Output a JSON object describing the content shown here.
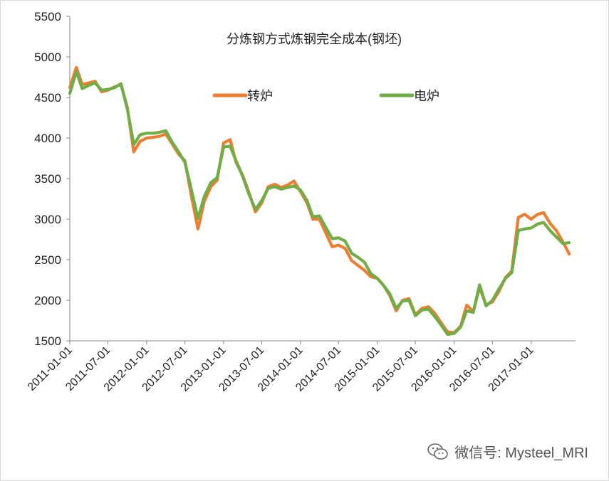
{
  "chart_data": {
    "type": "line",
    "title": "分炼钢方式炼钢完全成本(钢坯)",
    "xlabel": "",
    "ylabel": "",
    "ylim": [
      1500,
      5500
    ],
    "yticks": [
      1500,
      2000,
      2500,
      3000,
      3500,
      4000,
      4500,
      5000,
      5500
    ],
    "xlim": [
      "2011-01-01",
      "2017-07-31"
    ],
    "xticks": [
      "2011-01-01",
      "2011-07-01",
      "2012-01-01",
      "2012-07-01",
      "2013-01-01",
      "2013-07-01",
      "2014-01-01",
      "2014-07-01",
      "2015-01-01",
      "2015-07-01",
      "2016-01-01",
      "2016-07-01",
      "2017-01-01"
    ],
    "legend_position": "top",
    "grid": false,
    "series": [
      {
        "name": "转炉",
        "color": "#ED7D31",
        "points": [
          [
            "2011-01-01",
            4620
          ],
          [
            "2011-02-01",
            4870
          ],
          [
            "2011-03-01",
            4660
          ],
          [
            "2011-04-01",
            4680
          ],
          [
            "2011-05-01",
            4700
          ],
          [
            "2011-06-01",
            4570
          ],
          [
            "2011-07-01",
            4590
          ],
          [
            "2011-08-01",
            4630
          ],
          [
            "2011-09-01",
            4660
          ],
          [
            "2011-10-01",
            4380
          ],
          [
            "2011-11-01",
            3830
          ],
          [
            "2011-12-01",
            3960
          ],
          [
            "2012-01-01",
            4000
          ],
          [
            "2012-02-01",
            4010
          ],
          [
            "2012-03-01",
            4020
          ],
          [
            "2012-04-01",
            4050
          ],
          [
            "2012-05-01",
            3930
          ],
          [
            "2012-06-01",
            3800
          ],
          [
            "2012-07-01",
            3720
          ],
          [
            "2012-08-01",
            3280
          ],
          [
            "2012-09-01",
            2880
          ],
          [
            "2012-10-01",
            3220
          ],
          [
            "2012-11-01",
            3400
          ],
          [
            "2012-12-01",
            3480
          ],
          [
            "2013-01-01",
            3940
          ],
          [
            "2013-02-01",
            3980
          ],
          [
            "2013-03-01",
            3700
          ],
          [
            "2013-04-01",
            3540
          ],
          [
            "2013-05-01",
            3330
          ],
          [
            "2013-06-01",
            3090
          ],
          [
            "2013-07-01",
            3200
          ],
          [
            "2013-08-01",
            3400
          ],
          [
            "2013-09-01",
            3430
          ],
          [
            "2013-10-01",
            3390
          ],
          [
            "2013-11-01",
            3420
          ],
          [
            "2013-12-01",
            3470
          ],
          [
            "2014-01-01",
            3340
          ],
          [
            "2014-02-01",
            3200
          ],
          [
            "2014-03-01",
            3000
          ],
          [
            "2014-04-01",
            3000
          ],
          [
            "2014-05-01",
            2830
          ],
          [
            "2014-06-01",
            2660
          ],
          [
            "2014-07-01",
            2680
          ],
          [
            "2014-08-01",
            2640
          ],
          [
            "2014-09-01",
            2490
          ],
          [
            "2014-10-01",
            2430
          ],
          [
            "2014-11-01",
            2370
          ],
          [
            "2014-12-01",
            2290
          ],
          [
            "2015-01-01",
            2270
          ],
          [
            "2015-02-01",
            2180
          ],
          [
            "2015-03-01",
            2060
          ],
          [
            "2015-04-01",
            1870
          ],
          [
            "2015-05-01",
            2000
          ],
          [
            "2015-06-01",
            2020
          ],
          [
            "2015-07-01",
            1820
          ],
          [
            "2015-08-01",
            1900
          ],
          [
            "2015-09-01",
            1920
          ],
          [
            "2015-10-01",
            1840
          ],
          [
            "2015-11-01",
            1720
          ],
          [
            "2015-12-01",
            1610
          ],
          [
            "2016-01-01",
            1600
          ],
          [
            "2016-02-01",
            1680
          ],
          [
            "2016-03-01",
            1940
          ],
          [
            "2016-04-01",
            1860
          ],
          [
            "2016-05-01",
            2160
          ],
          [
            "2016-06-01",
            1940
          ],
          [
            "2016-07-01",
            1980
          ],
          [
            "2016-08-01",
            2110
          ],
          [
            "2016-09-01",
            2280
          ],
          [
            "2016-10-01",
            2360
          ],
          [
            "2016-11-01",
            3020
          ],
          [
            "2016-12-01",
            3060
          ],
          [
            "2017-01-01",
            3000
          ],
          [
            "2017-02-01",
            3060
          ],
          [
            "2017-03-01",
            3080
          ],
          [
            "2017-04-01",
            2950
          ],
          [
            "2017-05-01",
            2860
          ],
          [
            "2017-06-01",
            2720
          ],
          [
            "2017-07-01",
            2570
          ]
        ]
      },
      {
        "name": "电炉",
        "color": "#70AD47",
        "points": [
          [
            "2011-01-01",
            4550
          ],
          [
            "2011-02-01",
            4820
          ],
          [
            "2011-03-01",
            4610
          ],
          [
            "2011-04-01",
            4650
          ],
          [
            "2011-05-01",
            4680
          ],
          [
            "2011-06-01",
            4590
          ],
          [
            "2011-07-01",
            4600
          ],
          [
            "2011-08-01",
            4620
          ],
          [
            "2011-09-01",
            4670
          ],
          [
            "2011-10-01",
            4360
          ],
          [
            "2011-11-01",
            3920
          ],
          [
            "2011-12-01",
            4040
          ],
          [
            "2012-01-01",
            4060
          ],
          [
            "2012-02-01",
            4060
          ],
          [
            "2012-03-01",
            4070
          ],
          [
            "2012-04-01",
            4090
          ],
          [
            "2012-05-01",
            3950
          ],
          [
            "2012-06-01",
            3830
          ],
          [
            "2012-07-01",
            3700
          ],
          [
            "2012-08-01",
            3360
          ],
          [
            "2012-09-01",
            3010
          ],
          [
            "2012-10-01",
            3280
          ],
          [
            "2012-11-01",
            3450
          ],
          [
            "2012-12-01",
            3510
          ],
          [
            "2013-01-01",
            3890
          ],
          [
            "2013-02-01",
            3900
          ],
          [
            "2013-03-01",
            3720
          ],
          [
            "2013-04-01",
            3530
          ],
          [
            "2013-05-01",
            3310
          ],
          [
            "2013-06-01",
            3120
          ],
          [
            "2013-07-01",
            3230
          ],
          [
            "2013-08-01",
            3380
          ],
          [
            "2013-09-01",
            3400
          ],
          [
            "2013-10-01",
            3370
          ],
          [
            "2013-11-01",
            3390
          ],
          [
            "2013-12-01",
            3410
          ],
          [
            "2014-01-01",
            3360
          ],
          [
            "2014-02-01",
            3230
          ],
          [
            "2014-03-01",
            3030
          ],
          [
            "2014-04-01",
            3040
          ],
          [
            "2014-05-01",
            2900
          ],
          [
            "2014-06-01",
            2760
          ],
          [
            "2014-07-01",
            2770
          ],
          [
            "2014-08-01",
            2730
          ],
          [
            "2014-09-01",
            2580
          ],
          [
            "2014-10-01",
            2530
          ],
          [
            "2014-11-01",
            2470
          ],
          [
            "2014-12-01",
            2330
          ],
          [
            "2015-01-01",
            2270
          ],
          [
            "2015-02-01",
            2180
          ],
          [
            "2015-03-01",
            2080
          ],
          [
            "2015-04-01",
            1900
          ],
          [
            "2015-05-01",
            1990
          ],
          [
            "2015-06-01",
            2000
          ],
          [
            "2015-07-01",
            1810
          ],
          [
            "2015-08-01",
            1880
          ],
          [
            "2015-09-01",
            1890
          ],
          [
            "2015-10-01",
            1800
          ],
          [
            "2015-11-01",
            1690
          ],
          [
            "2015-12-01",
            1580
          ],
          [
            "2016-01-01",
            1590
          ],
          [
            "2016-02-01",
            1670
          ],
          [
            "2016-03-01",
            1870
          ],
          [
            "2016-04-01",
            1850
          ],
          [
            "2016-05-01",
            2190
          ],
          [
            "2016-06-01",
            1930
          ],
          [
            "2016-07-01",
            2000
          ],
          [
            "2016-08-01",
            2140
          ],
          [
            "2016-09-01",
            2270
          ],
          [
            "2016-10-01",
            2340
          ],
          [
            "2016-11-01",
            2860
          ],
          [
            "2016-12-01",
            2880
          ],
          [
            "2017-01-01",
            2890
          ],
          [
            "2017-02-01",
            2940
          ],
          [
            "2017-03-01",
            2960
          ],
          [
            "2017-04-01",
            2860
          ],
          [
            "2017-05-01",
            2780
          ],
          [
            "2017-06-01",
            2700
          ],
          [
            "2017-07-01",
            2710
          ]
        ]
      }
    ]
  },
  "watermark": {
    "icon": "wechat-icon",
    "text": "微信号: Mysteel_MRI"
  }
}
